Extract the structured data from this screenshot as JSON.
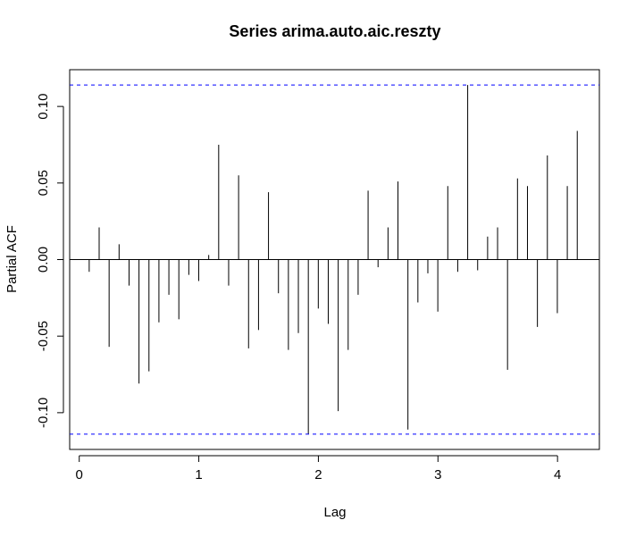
{
  "chart_data": {
    "type": "bar",
    "title": "Series  arima.auto.aic.reszty",
    "xlabel": "Lag",
    "ylabel": "Partial ACF",
    "xlim": [
      -0.08,
      4.35
    ],
    "ylim": [
      -0.124,
      0.124
    ],
    "xticks": [
      0,
      1,
      2,
      3,
      4
    ],
    "xtick_labels": [
      "0",
      "1",
      "2",
      "3",
      "4"
    ],
    "yticks": [
      -0.1,
      -0.05,
      0.0,
      0.05,
      0.1
    ],
    "ytick_labels": [
      "-0.10",
      "-0.05",
      "0.00",
      "0.05",
      "0.10"
    ],
    "confidence_limit": 0.114,
    "colors": {
      "bars": "#000000",
      "confidence": "#0000ff",
      "zero_line": "#000000"
    },
    "lag_step": 0.0833,
    "values": [
      -0.008,
      0.021,
      -0.057,
      0.01,
      -0.017,
      -0.081,
      -0.073,
      -0.041,
      -0.023,
      -0.039,
      -0.01,
      -0.014,
      0.003,
      0.075,
      -0.017,
      0.055,
      -0.058,
      -0.046,
      0.044,
      -0.022,
      -0.059,
      -0.048,
      -0.114,
      -0.032,
      -0.042,
      -0.099,
      -0.059,
      -0.023,
      0.045,
      -0.005,
      0.021,
      0.051,
      -0.111,
      -0.028,
      -0.009,
      -0.034,
      0.048,
      -0.008,
      0.114,
      -0.007,
      0.015,
      0.021,
      -0.072,
      0.053,
      0.048,
      -0.044,
      0.068,
      -0.035,
      0.048,
      0.084
    ]
  }
}
